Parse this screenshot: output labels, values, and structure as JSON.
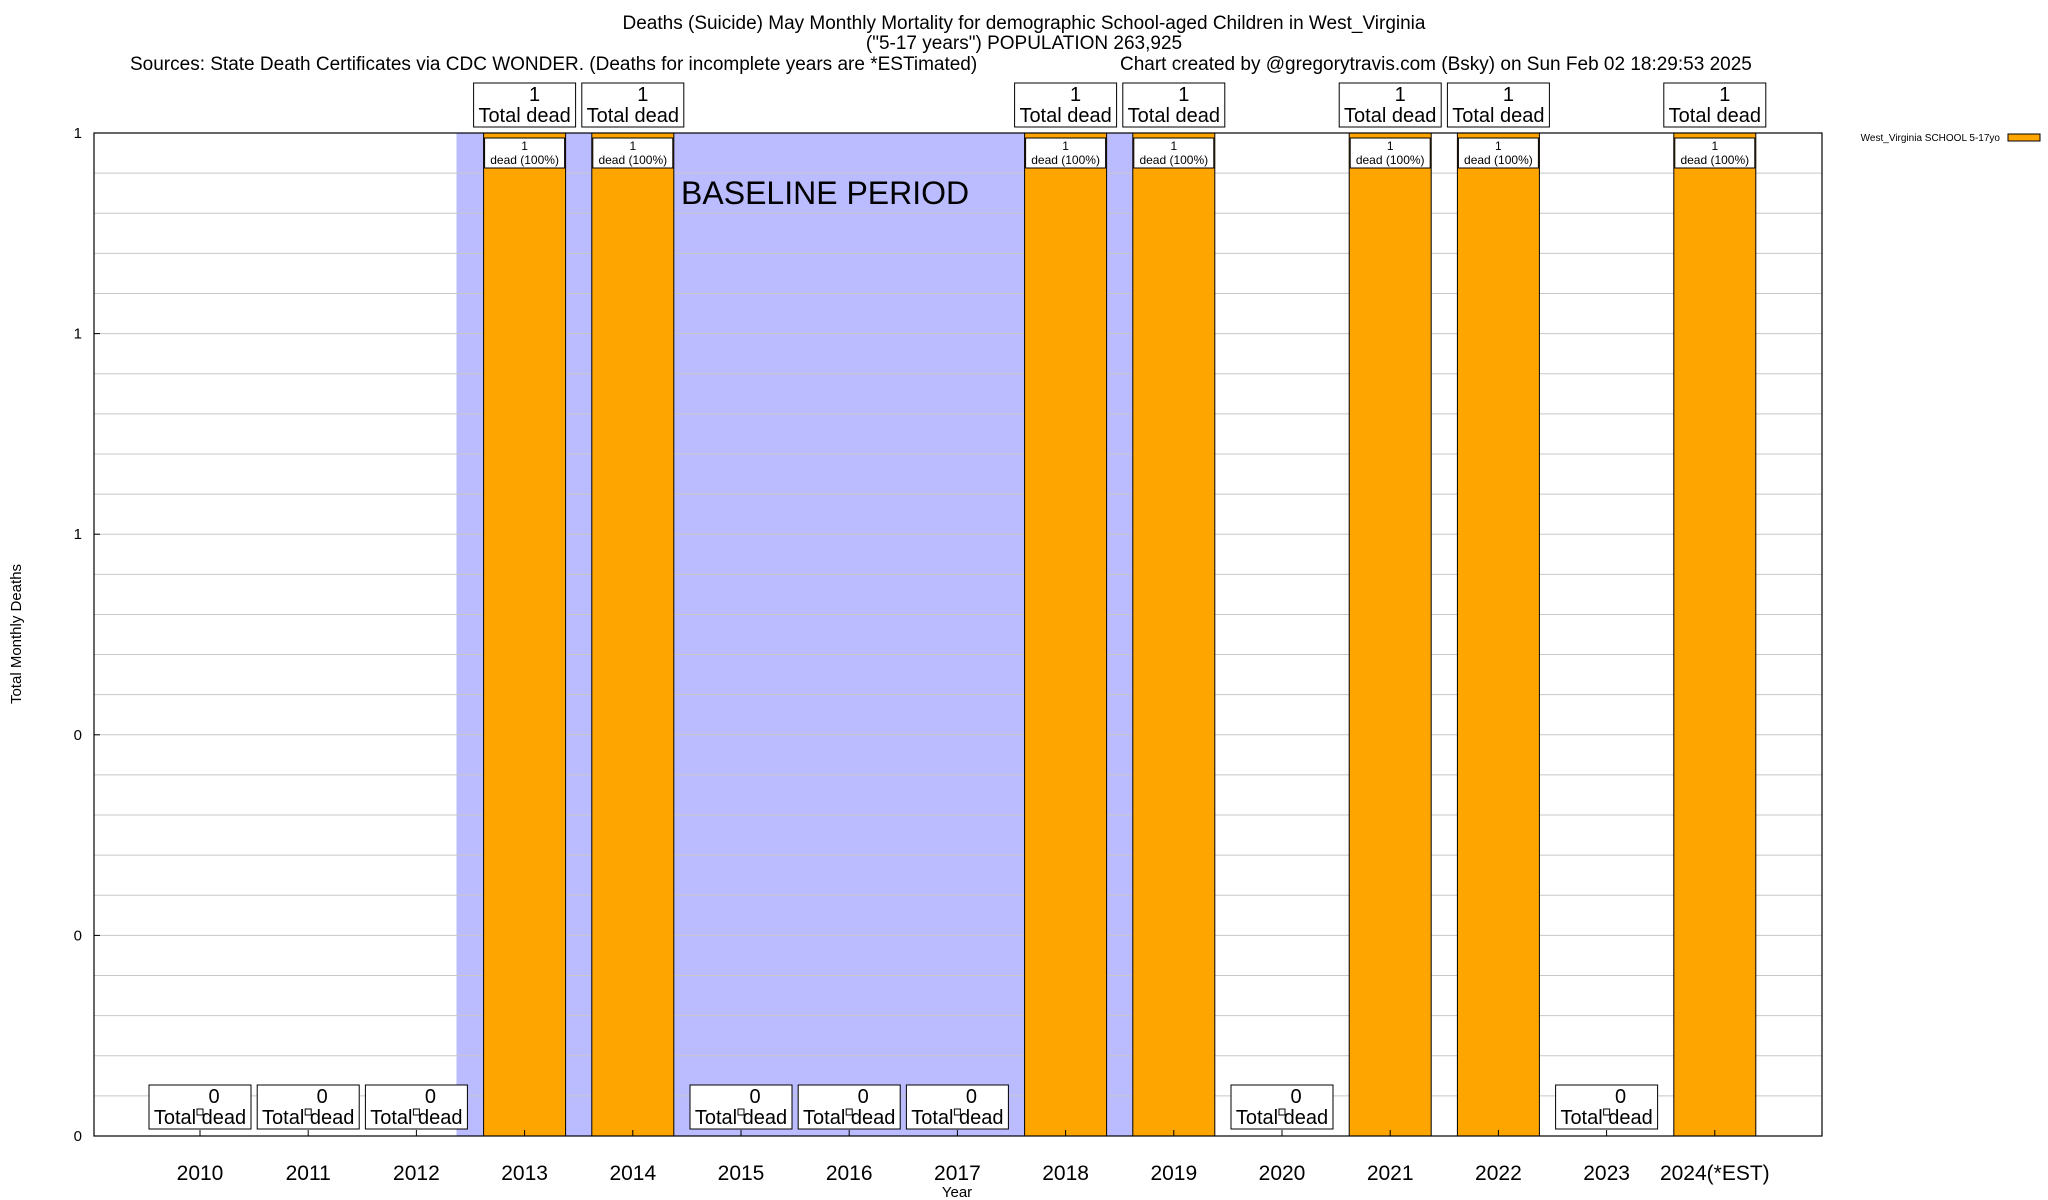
{
  "header": {
    "title_line1": "Deaths (Suicide) May Monthly Mortality for demographic School-aged Children in West_Virginia",
    "title_line2": "(\"5-17 years\") POPULATION 263,925",
    "sources": "Sources: State Death Certificates via CDC WONDER. (Deaths for incomplete years are *ESTimated)",
    "credit": "Chart created by @gregorytravis.com (Bsky) on Sun Feb 02 18:29:53 2025"
  },
  "chart_data": {
    "type": "bar",
    "title": "Deaths (Suicide) May Monthly Mortality for demographic School-aged Children in West_Virginia",
    "xlabel": "Year",
    "ylabel": "Total Monthly Deaths",
    "categories": [
      "2010",
      "2011",
      "2012",
      "2013",
      "2014",
      "2015",
      "2016",
      "2017",
      "2018",
      "2019",
      "2020",
      "2021",
      "2022",
      "2023",
      "2024(*EST)"
    ],
    "series": [
      {
        "name": "West_Virginia SCHOOL 5-17yo",
        "color": "#ffa500",
        "values": [
          0,
          0,
          0,
          1,
          1,
          0,
          0,
          0,
          1,
          1,
          0,
          1,
          1,
          0,
          1
        ]
      }
    ],
    "ylim": [
      0,
      1
    ],
    "ytick_labels": [
      "0",
      "0",
      "0",
      "1",
      "1",
      "1"
    ],
    "total_label_suffix": "Total dead",
    "segment_label_text": "dead (100%)",
    "baseline_period": {
      "label": "BASELINE PERIOD",
      "from": "2012",
      "to": "2019",
      "color": "#bbbbff"
    },
    "grid": true,
    "legend_position": "top-right"
  }
}
